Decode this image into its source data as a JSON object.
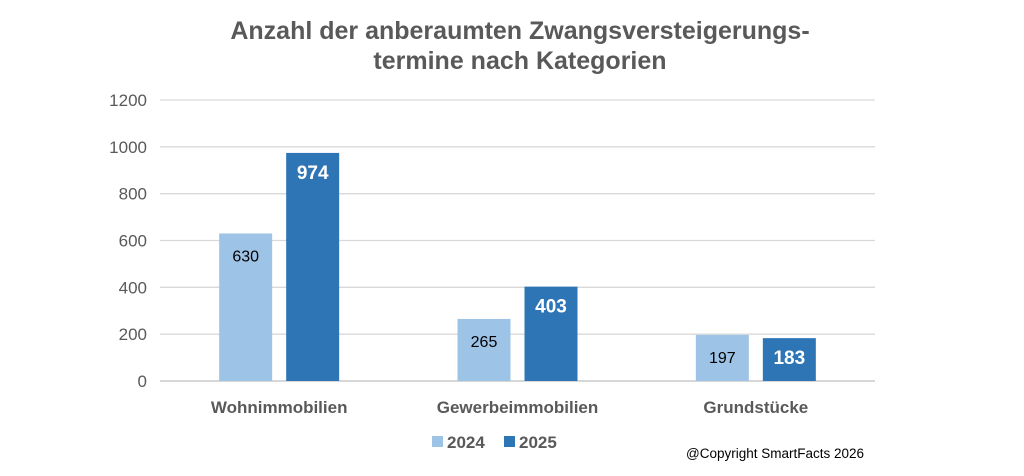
{
  "chart_data": {
    "type": "bar",
    "title_line1": "Anzahl der anberaumten Zwangsversteigerungs-",
    "title_line2": "termine nach Kategorien",
    "categories": [
      "Wohnimmobilien",
      "Gewerbeimmobilien",
      "Grundstücke"
    ],
    "series": [
      {
        "name": "2024",
        "values": [
          630,
          265,
          197
        ],
        "color": "#9DC3E6"
      },
      {
        "name": "2025",
        "values": [
          974,
          403,
          183
        ],
        "color": "#2E75B6"
      }
    ],
    "ylim": [
      0,
      1200
    ],
    "yticks": [
      0,
      200,
      400,
      600,
      800,
      1000,
      1200
    ],
    "grid": true,
    "legend": "bottom"
  },
  "copyright": "@Copyright SmartFacts 2026"
}
